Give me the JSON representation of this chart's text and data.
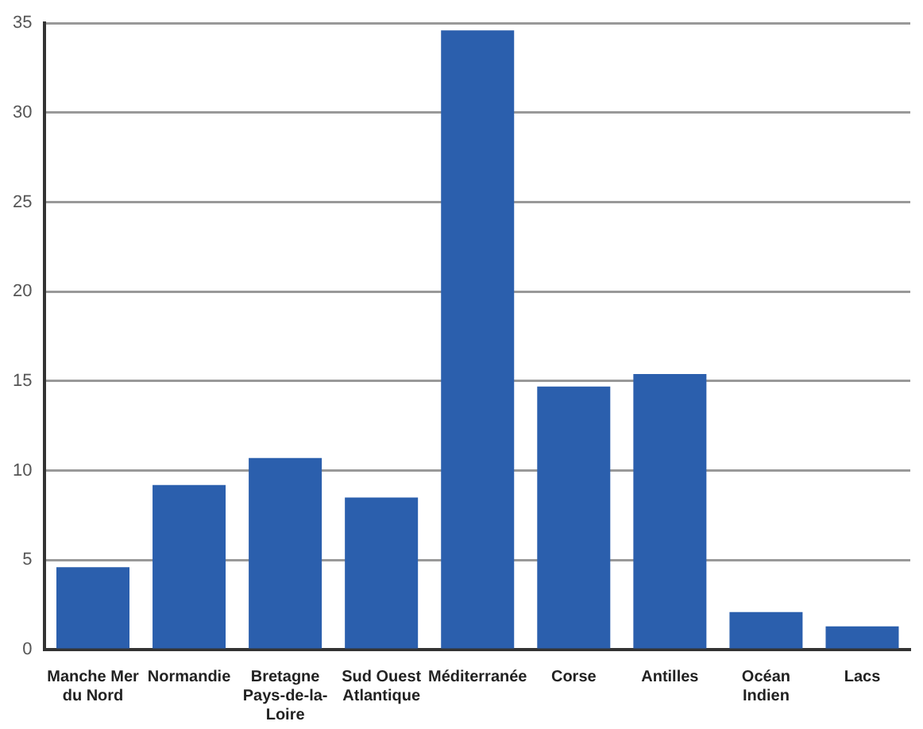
{
  "chart_data": {
    "type": "bar",
    "categories": [
      "Manche Mer du Nord",
      "Normandie",
      "Bretagne Pays-de-la-Loire",
      "Sud Ouest Atlantique",
      "Méditerranée",
      "Corse",
      "Antilles",
      "Océan Indien",
      "Lacs"
    ],
    "values": [
      4.6,
      9.2,
      10.7,
      8.5,
      34.6,
      14.7,
      15.4,
      2.1,
      1.3
    ],
    "color": "#2b5fad",
    "ylim": [
      0,
      35
    ],
    "yticks": [
      0,
      5,
      10,
      15,
      20,
      25,
      30,
      35
    ],
    "grid": "y"
  }
}
